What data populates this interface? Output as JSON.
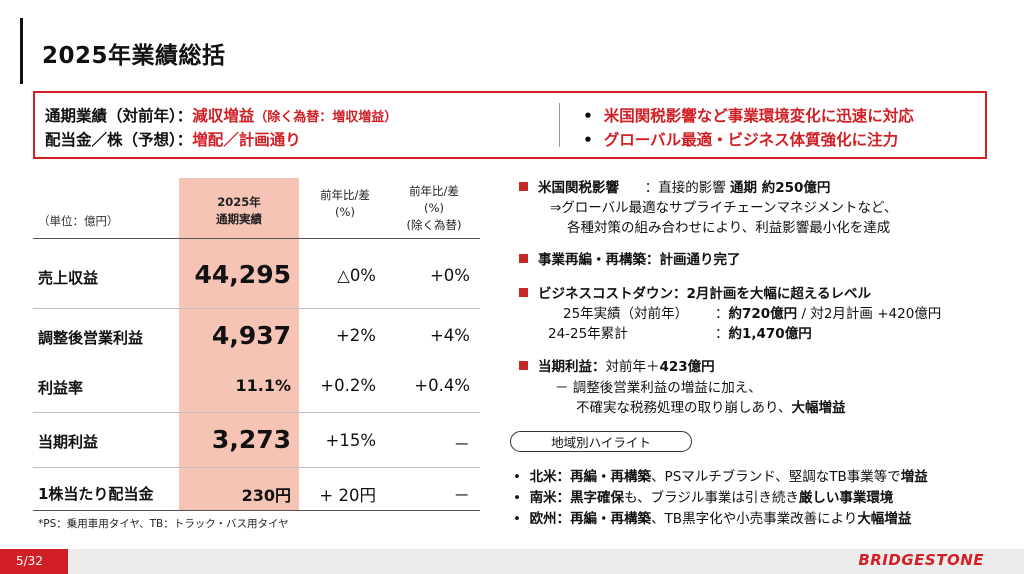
{
  "header": {
    "title": "2025年業績総括"
  },
  "summary": {
    "line1": {
      "label": "通期業績（対前年）",
      "colon": "：",
      "value": "減収増益",
      "note": "（除く為替：増収増益）"
    },
    "line2": {
      "label": "配当金／株（予想）",
      "colon": "：",
      "value": "増配／計画通り"
    },
    "bullets": [
      "米国関税影響など事業環境変化に迅速に対応",
      "グローバル最適・ビジネス体質強化に注力"
    ]
  },
  "table": {
    "unit": "（単位：億円）",
    "col_highlight": [
      "2025年",
      "通期実績"
    ],
    "col_yoy": [
      "前年比/差",
      "(%)"
    ],
    "col_yoy_fx": [
      "前年比/差",
      "(%)",
      "(除く為替)"
    ],
    "rows": [
      {
        "label": "売上収益",
        "value": "44,295",
        "yoy": "△0%",
        "yoy_fx": "+0%"
      },
      {
        "label": "調整後営業利益",
        "value": "4,937",
        "yoy": "+2%",
        "yoy_fx": "+4%"
      },
      {
        "label": "利益率",
        "value": "11.1%",
        "yoy": "+0.2%",
        "yoy_fx": "+0.4%"
      },
      {
        "label": "当期利益",
        "value": "3,273",
        "yoy": "+15%",
        "yoy_fx": "－"
      },
      {
        "label": "1株当たり配当金",
        "value": "230円",
        "yoy": "+ 20円",
        "yoy_fx": "－"
      }
    ],
    "footnote": "*PS：乗用車用タイヤ、TB：トラック・バス用タイヤ"
  },
  "right": {
    "tariff": {
      "title": "米国関税影響",
      "desc": "：直接的影響 ",
      "desc_bold": "通期 約250億円",
      "sub1": "⇒グローバル最適なサプライチェーンマネジメントなど、",
      "sub2": "各種対策の組み合わせにより、利益影響最小化を達成"
    },
    "restructure": {
      "text": "事業再編・再構築：計画通り完了"
    },
    "costdown": {
      "title": "ビジネスコストダウン：2月計画を大幅に超えるレベル",
      "l1_label": "25年実績（対前年）",
      "l1_colon": "：",
      "l1_value": "約720億円",
      "l1_rest": " / 対2月計画 +420億円",
      "l2_label": "24-25年累計",
      "l2_colon": "：",
      "l2_value": "約1,470億円"
    },
    "net": {
      "title": "当期利益",
      "colon": "：",
      "desc": "対前年＋",
      "desc_bold": "423億円",
      "sub1": "－ 調整後営業利益の増益に加え、",
      "sub2": "不確実な税務処理の取り崩しあり、",
      "sub2_bold": "大幅増益"
    },
    "region_label": "地域別ハイライト",
    "regions": [
      {
        "name": "北米：",
        "bold1": "再編・再構築",
        "mid": "、PSマルチブランド、堅調なTB事業等で",
        "bold2": "増益"
      },
      {
        "name": "南米：",
        "bold1": "黒字確保",
        "mid": "も、ブラジル事業は引き続き",
        "bold2": "厳しい事業環境"
      },
      {
        "name": "欧州：",
        "bold1": "再編・再構築",
        "mid": "、TB黒字化や小売事業改善により",
        "bold2": "大幅増益"
      }
    ]
  },
  "footer": {
    "page": "5/32",
    "logo": "BRIDGESTONE"
  },
  "colors": {
    "accent": "#d21f26",
    "highlight": "#f6c4b5"
  }
}
